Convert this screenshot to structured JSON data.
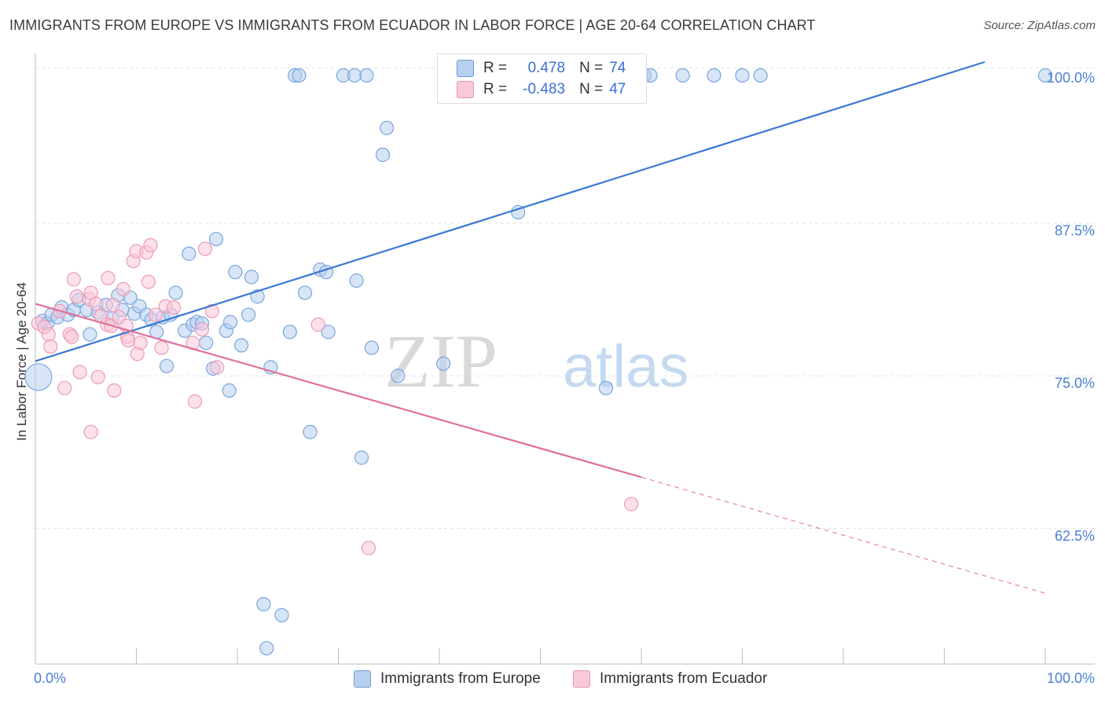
{
  "title": "IMMIGRANTS FROM EUROPE VS IMMIGRANTS FROM ECUADOR IN LABOR FORCE | AGE 20-64 CORRELATION CHART",
  "source": "Source: ZipAtlas.com",
  "watermark": {
    "zip": "ZIP",
    "atlas": "atlas"
  },
  "legend": {
    "europe": {
      "r_label": "R =",
      "r_value": "0.478",
      "n_label": "N =",
      "n_value": "74"
    },
    "ecuador": {
      "r_label": "R =",
      "r_value": "-0.483",
      "n_label": "N =",
      "n_value": "47"
    }
  },
  "bottom_legend": {
    "europe": "Immigrants from Europe",
    "ecuador": "Immigrants from Ecuador"
  },
  "colors": {
    "blue": "#3a78d4",
    "blue_fill": "#b7d0f0",
    "pink": "#e0709a",
    "pink_fill": "#f9c9d8",
    "axis_label": "#4a7fd8"
  },
  "chart_data": {
    "type": "scatter",
    "title": "IMMIGRANTS FROM EUROPE VS IMMIGRANTS FROM ECUADOR IN LABOR FORCE | AGE 20-64 CORRELATION CHART",
    "xlabel": "",
    "ylabel": "In Labor Force | Age 20-64",
    "xlim": [
      0,
      100
    ],
    "ylim": [
      52,
      102
    ],
    "x_tick_labels": [
      "0.0%",
      "100.0%"
    ],
    "y_ticks": [
      100.0,
      87.5,
      75.0,
      62.5
    ],
    "y_tick_labels": [
      "100.0%",
      "87.5%",
      "75.0%",
      "62.5%"
    ],
    "series": [
      {
        "name": "Immigrants from Europe",
        "color": "#3a78d4",
        "trend": {
          "x0": 0,
          "y0": 76.8,
          "x1": 94,
          "y1": 101.3
        },
        "points": [
          [
            0.3,
            75.5
          ],
          [
            0.7,
            80.1
          ],
          [
            1.2,
            79.9
          ],
          [
            1.6,
            80.6
          ],
          [
            2.2,
            80.4
          ],
          [
            2.6,
            81.2
          ],
          [
            3.2,
            80.6
          ],
          [
            3.8,
            81.0
          ],
          [
            4.3,
            81.8
          ],
          [
            5.1,
            81.0
          ],
          [
            5.4,
            79.0
          ],
          [
            6.2,
            80.8
          ],
          [
            7.0,
            81.4
          ],
          [
            7.6,
            80.3
          ],
          [
            8.2,
            82.2
          ],
          [
            8.6,
            81.0
          ],
          [
            9.4,
            82.0
          ],
          [
            9.8,
            80.7
          ],
          [
            10.3,
            81.3
          ],
          [
            11.0,
            80.6
          ],
          [
            11.5,
            80.2
          ],
          [
            12.0,
            79.2
          ],
          [
            12.6,
            80.4
          ],
          [
            13.0,
            76.4
          ],
          [
            13.4,
            80.6
          ],
          [
            13.9,
            82.4
          ],
          [
            14.8,
            79.3
          ],
          [
            15.2,
            85.6
          ],
          [
            15.6,
            79.8
          ],
          [
            16.0,
            80.0
          ],
          [
            16.5,
            79.9
          ],
          [
            16.9,
            78.3
          ],
          [
            17.6,
            76.2
          ],
          [
            17.9,
            86.8
          ],
          [
            18.9,
            79.3
          ],
          [
            19.3,
            80.0
          ],
          [
            19.2,
            74.4
          ],
          [
            19.8,
            84.1
          ],
          [
            20.4,
            78.1
          ],
          [
            21.1,
            80.6
          ],
          [
            21.4,
            83.7
          ],
          [
            22.0,
            82.1
          ],
          [
            22.6,
            56.9
          ],
          [
            22.9,
            53.3
          ],
          [
            23.3,
            76.3
          ],
          [
            24.4,
            56.0
          ],
          [
            25.2,
            79.2
          ],
          [
            25.7,
            100.2
          ],
          [
            26.1,
            100.2
          ],
          [
            26.7,
            82.4
          ],
          [
            27.2,
            71.0
          ],
          [
            28.2,
            84.3
          ],
          [
            28.8,
            84.1
          ],
          [
            29.0,
            79.2
          ],
          [
            30.5,
            100.2
          ],
          [
            31.6,
            100.2
          ],
          [
            31.8,
            83.4
          ],
          [
            32.3,
            68.9
          ],
          [
            32.8,
            100.2
          ],
          [
            33.3,
            77.9
          ],
          [
            34.4,
            93.7
          ],
          [
            34.8,
            95.9
          ],
          [
            35.9,
            75.6
          ],
          [
            40.4,
            76.6
          ],
          [
            47.8,
            89.0
          ],
          [
            56.5,
            74.6
          ],
          [
            60.0,
            100.2
          ],
          [
            60.3,
            100.2
          ],
          [
            60.9,
            100.2
          ],
          [
            64.1,
            100.2
          ],
          [
            67.2,
            100.2
          ],
          [
            70.0,
            100.2
          ],
          [
            71.8,
            100.2
          ],
          [
            100.0,
            100.2
          ]
        ]
      },
      {
        "name": "Immigrants from Ecuador",
        "color": "#e0709a",
        "trend": {
          "x0": 0,
          "y0": 81.5,
          "x1": 60,
          "y1": 67.3,
          "dash_x1": 100,
          "dash_y1": 57.8
        },
        "points": [
          [
            0.3,
            79.9
          ],
          [
            0.9,
            79.6
          ],
          [
            1.3,
            79.0
          ],
          [
            1.5,
            78.0
          ],
          [
            2.4,
            80.9
          ],
          [
            2.9,
            74.6
          ],
          [
            3.4,
            79.0
          ],
          [
            3.6,
            78.8
          ],
          [
            3.8,
            83.5
          ],
          [
            4.1,
            82.1
          ],
          [
            4.4,
            75.9
          ],
          [
            5.3,
            81.9
          ],
          [
            5.5,
            82.4
          ],
          [
            5.5,
            71.0
          ],
          [
            6.0,
            81.5
          ],
          [
            6.2,
            75.5
          ],
          [
            6.5,
            80.5
          ],
          [
            7.1,
            79.8
          ],
          [
            7.2,
            83.6
          ],
          [
            7.5,
            79.7
          ],
          [
            7.7,
            81.4
          ],
          [
            7.8,
            74.4
          ],
          [
            8.3,
            80.4
          ],
          [
            8.7,
            82.7
          ],
          [
            9.0,
            79.7
          ],
          [
            9.1,
            78.8
          ],
          [
            9.2,
            78.5
          ],
          [
            9.7,
            85.0
          ],
          [
            10.0,
            85.8
          ],
          [
            10.1,
            77.4
          ],
          [
            10.4,
            78.3
          ],
          [
            11.0,
            85.7
          ],
          [
            11.2,
            83.3
          ],
          [
            11.4,
            86.3
          ],
          [
            11.9,
            80.6
          ],
          [
            12.5,
            77.9
          ],
          [
            12.9,
            81.3
          ],
          [
            13.7,
            81.2
          ],
          [
            15.6,
            78.3
          ],
          [
            15.8,
            73.5
          ],
          [
            16.5,
            79.4
          ],
          [
            16.8,
            86.0
          ],
          [
            17.5,
            80.9
          ],
          [
            18.0,
            76.3
          ],
          [
            28.0,
            79.8
          ],
          [
            33.0,
            61.5
          ],
          [
            59.0,
            65.1
          ]
        ]
      }
    ]
  }
}
